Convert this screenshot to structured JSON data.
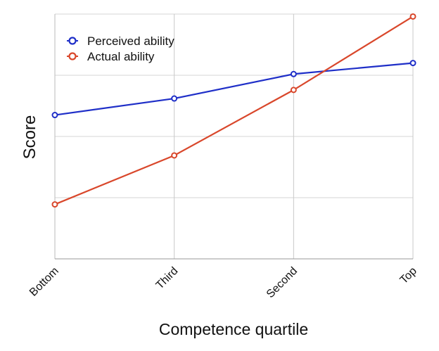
{
  "chart_data": {
    "type": "line",
    "title": "",
    "xlabel": "Competence quartile",
    "ylabel": "Score",
    "categories": [
      "Bottom",
      "Third",
      "Second",
      "Top"
    ],
    "ylim": [
      0,
      4
    ],
    "y_gridlines": [
      1,
      2,
      3,
      4
    ],
    "grid": true,
    "legend": "top-left",
    "series": [
      {
        "name": "Perceived ability",
        "color": "#1f2fc8",
        "values": [
          2.35,
          2.62,
          3.02,
          3.2
        ]
      },
      {
        "name": "Actual ability",
        "color": "#d9472b",
        "values": [
          0.89,
          1.69,
          2.76,
          3.96
        ]
      }
    ]
  }
}
